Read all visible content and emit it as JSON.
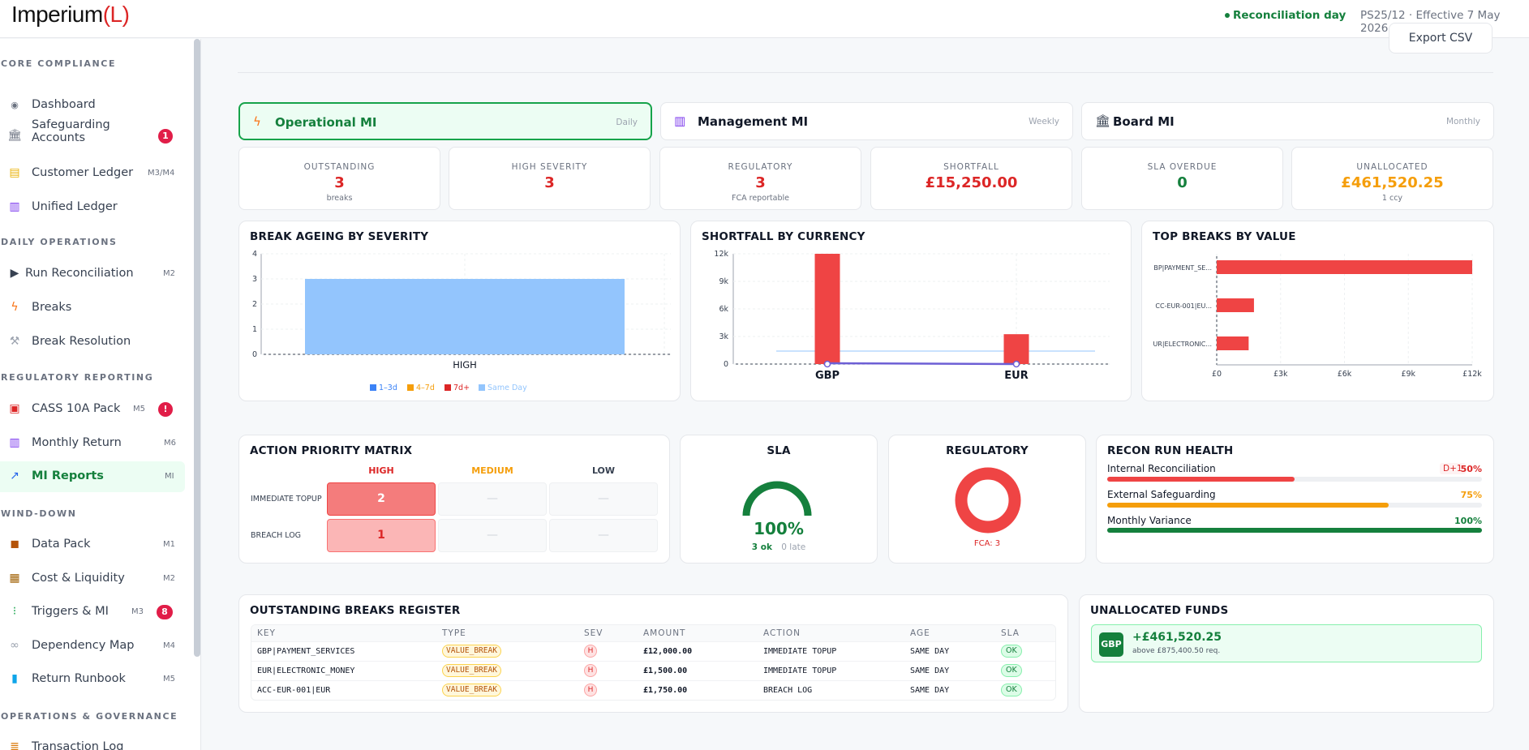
{
  "app": {
    "logo_main": "Imperium",
    "logo_paren": "(L)",
    "status": "Reconciliation day",
    "policy": "PS25/12 · Effective 7 May 2026"
  },
  "toolbar": {
    "export_label": "Export CSV"
  },
  "sidebar": {
    "sections": {
      "core": "CORE COMPLIANCE",
      "daily": "DAILY OPERATIONS",
      "regulatory": "REGULATORY REPORTING",
      "winddown": "WIND-DOWN",
      "ops": "OPERATIONS & GOVERNANCE"
    },
    "items": [
      {
        "label": "Dashboard",
        "icon": "dashboard-icon"
      },
      {
        "label": "Safeguarding Accounts",
        "badge": "1",
        "icon": "bank-icon"
      },
      {
        "label": "Customer Ledger",
        "code": "M3/M4",
        "icon": "ledger-icon"
      },
      {
        "label": "Unified Ledger",
        "icon": "chart-icon"
      },
      {
        "label": "Run Reconciliation",
        "code": "M2",
        "icon": "play-icon"
      },
      {
        "label": "Breaks",
        "icon": "lightning-icon"
      },
      {
        "label": "Break Resolution",
        "icon": "wrench-icon"
      },
      {
        "label": "CASS 10A Pack",
        "code": "M5",
        "badge": "!",
        "icon": "clipboard-icon"
      },
      {
        "label": "Monthly Return",
        "code": "M6",
        "icon": "bar-chart-icon"
      },
      {
        "label": "MI Reports",
        "code": "MI",
        "icon": "trend-icon"
      },
      {
        "label": "Data Pack",
        "code": "M1",
        "icon": "package-icon"
      },
      {
        "label": "Cost & Liquidity",
        "code": "M2",
        "icon": "coins-icon"
      },
      {
        "label": "Triggers & MI",
        "code": "M3",
        "badge": "8",
        "icon": "traffic-light-icon"
      },
      {
        "label": "Dependency Map",
        "code": "M4",
        "icon": "link-icon"
      },
      {
        "label": "Return Runbook",
        "code": "M5",
        "icon": "book-icon"
      },
      {
        "label": "Transaction Log",
        "icon": "scroll-icon"
      }
    ]
  },
  "tabs": [
    {
      "label": "Operational MI",
      "freq": "Daily",
      "icon": "lightning-icon"
    },
    {
      "label": "Management MI",
      "freq": "Weekly",
      "icon": "bar-chart-icon"
    },
    {
      "label": "Board MI",
      "freq": "Monthly",
      "icon": "bank-icon"
    }
  ],
  "kpis": [
    {
      "label": "OUTSTANDING",
      "value": "3",
      "sub": "breaks",
      "color": "#dc2626"
    },
    {
      "label": "HIGH SEVERITY",
      "value": "3",
      "sub": "",
      "color": "#dc2626"
    },
    {
      "label": "REGULATORY",
      "value": "3",
      "sub": "FCA reportable",
      "color": "#dc2626"
    },
    {
      "label": "SHORTFALL",
      "value": "£15,250.00",
      "sub": "",
      "color": "#dc2626"
    },
    {
      "label": "SLA OVERDUE",
      "value": "0",
      "sub": "",
      "color": "#15803d"
    },
    {
      "label": "UNALLOCATED",
      "value": "£461,520.25",
      "sub": "1 ccy",
      "color": "#f59e0b"
    }
  ],
  "charts": {
    "ageing_title": "BREAK AGEING BY SEVERITY",
    "shortfall_title": "SHORTFALL BY CURRENCY",
    "top_title": "TOP BREAKS BY VALUE"
  },
  "chart_data": [
    {
      "type": "bar",
      "title": "BREAK AGEING BY SEVERITY",
      "categories": [
        "HIGH"
      ],
      "series": [
        {
          "name": "1–3d",
          "values": [
            0
          ],
          "color": "#3b82f6"
        },
        {
          "name": "4–7d",
          "values": [
            0
          ],
          "color": "#f59e0b"
        },
        {
          "name": "7d+",
          "values": [
            0
          ],
          "color": "#dc2626"
        },
        {
          "name": "Same Day",
          "values": [
            3
          ],
          "color": "#93c5fd"
        }
      ],
      "stacked": true,
      "ylim": [
        0,
        4
      ],
      "yticks": [
        "0",
        "1",
        "2",
        "3",
        "4"
      ],
      "legend": "bottom"
    },
    {
      "type": "bar",
      "title": "SHORTFALL BY CURRENCY",
      "categories": [
        "GBP",
        "EUR"
      ],
      "series": [
        {
          "values": [
            12000,
            3250
          ],
          "color": "#ef4444"
        }
      ],
      "ylim": [
        0,
        12000
      ],
      "yticks": [
        "0",
        "3k",
        "6k",
        "9k",
        "12k"
      ]
    },
    {
      "type": "bar",
      "orientation": "horizontal",
      "title": "TOP BREAKS BY VALUE",
      "categories": [
        "BP|PAYMENT_SE...",
        "CC-EUR-001|EU...",
        "UR|ELECTRONIC..."
      ],
      "values": [
        12000,
        1750,
        1500
      ],
      "color": "#ef4444",
      "xlim": [
        0,
        12000
      ],
      "xticks": [
        "£0",
        "£3k",
        "£6k",
        "£9k",
        "£12k"
      ]
    }
  ],
  "matrix": {
    "title": "ACTION PRIORITY MATRIX",
    "cols": [
      {
        "label": "HIGH",
        "color": "#dc2626"
      },
      {
        "label": "MEDIUM",
        "color": "#f59e0b"
      },
      {
        "label": "LOW",
        "color": "#374151"
      }
    ],
    "rows": [
      {
        "label": "IMMEDIATE TOPUP",
        "cells": [
          "2",
          "—",
          "—"
        ]
      },
      {
        "label": "BREACH LOG",
        "cells": [
          "1",
          "—",
          "—"
        ]
      }
    ]
  },
  "sla": {
    "title": "SLA",
    "percent": 100,
    "value": "100%",
    "ok": "3 ok",
    "late": "0 late"
  },
  "regulatory": {
    "title": "REGULATORY",
    "label": "FCA: 3"
  },
  "recon": {
    "title": "RECON RUN HEALTH",
    "tag": "D+1",
    "rows": [
      {
        "name": "Internal Reconciliation",
        "pct": "50%",
        "fraction": 0.5,
        "color": "#ef4444"
      },
      {
        "name": "External Safeguarding",
        "pct": "75%",
        "fraction": 0.75,
        "color": "#f59e0b"
      },
      {
        "name": "Monthly Variance",
        "pct": "100%",
        "fraction": 1.0,
        "color": "#15803d"
      }
    ]
  },
  "register": {
    "title": "OUTSTANDING BREAKS REGISTER",
    "columns": [
      "KEY",
      "TYPE",
      "SEV",
      "AMOUNT",
      "ACTION",
      "AGE",
      "SLA"
    ],
    "rows": [
      {
        "key": "GBP|PAYMENT_SERVICES",
        "type": "VALUE_BREAK",
        "sev": "H",
        "amount": "£12,000.00",
        "action": "IMMEDIATE TOPUP",
        "age": "SAME DAY",
        "sla": "OK"
      },
      {
        "key": "EUR|ELECTRONIC_MONEY",
        "type": "VALUE_BREAK",
        "sev": "H",
        "amount": "£1,500.00",
        "action": "IMMEDIATE TOPUP",
        "age": "SAME DAY",
        "sla": "OK"
      },
      {
        "key": "ACC-EUR-001|EUR",
        "type": "VALUE_BREAK",
        "sev": "H",
        "amount": "£1,750.00",
        "action": "BREACH LOG",
        "age": "SAME DAY",
        "sla": "OK"
      }
    ]
  },
  "unallocated": {
    "title": "UNALLOCATED FUNDS",
    "ccy": "GBP",
    "amount": "+£461,520.25",
    "sub": "above £875,400.50 req."
  }
}
